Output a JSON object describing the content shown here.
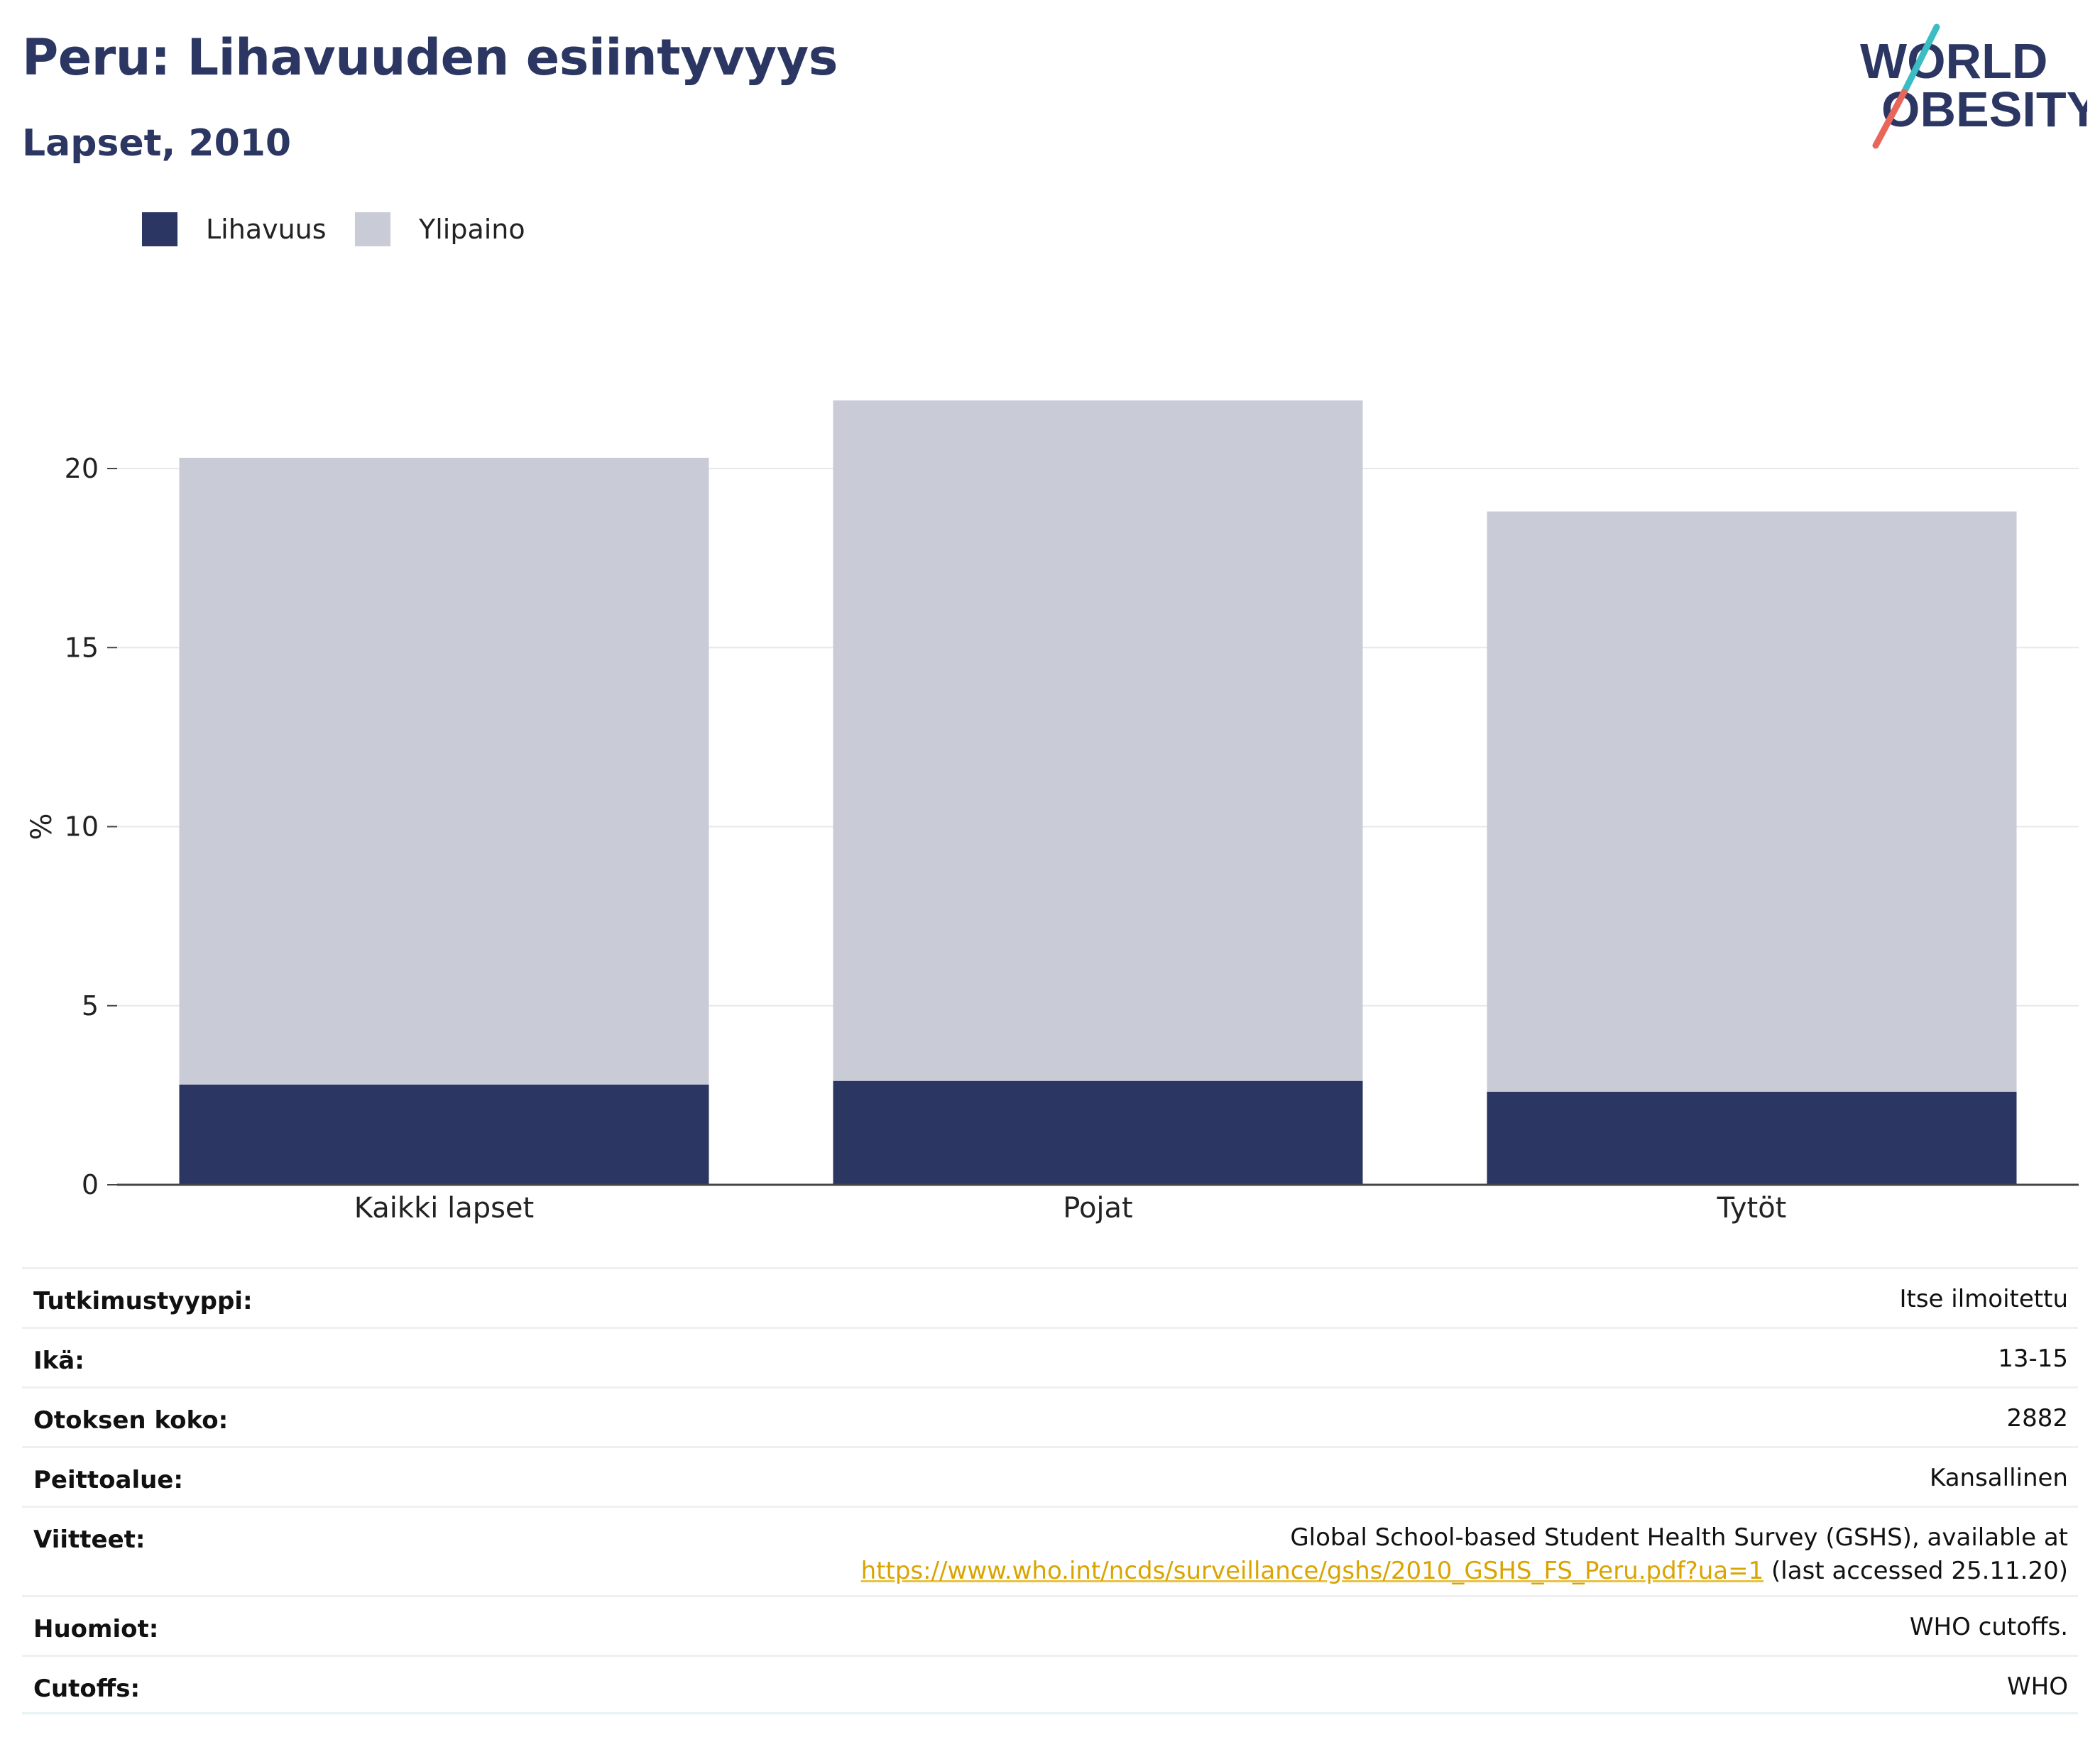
{
  "title": "Peru: Lihavuuden esiintyvyys",
  "subtitle": "Lapset, 2010",
  "logo": {
    "line1": "WORLD",
    "line2": "OBESITY"
  },
  "colors": {
    "obesity": "#2b3663",
    "overweight": "#c9cbd7",
    "title": "#2b3663",
    "link": "#d9a400",
    "logo_teal": "#3cbcc3",
    "logo_coral": "#e8675a"
  },
  "legend": [
    {
      "label": "Lihavuus",
      "color": "#2b3663"
    },
    {
      "label": "Ylipaino",
      "color": "#c9cbd7"
    }
  ],
  "chart_data": {
    "type": "bar",
    "stacked": true,
    "categories": [
      "Kaikki lapset",
      "Pojat",
      "Tytöt"
    ],
    "series": [
      {
        "name": "Lihavuus",
        "values": [
          2.8,
          2.9,
          2.6
        ],
        "color": "#2b3663"
      },
      {
        "name": "Ylipaino",
        "values": [
          17.5,
          19.0,
          16.2
        ],
        "color": "#c9cbd7"
      }
    ],
    "totals": [
      20.3,
      21.9,
      18.8
    ],
    "ylabel": "%",
    "yticks": [
      0,
      5,
      10,
      15,
      20
    ],
    "ylim": [
      0,
      22.5
    ],
    "grid": true,
    "legend_position": "top-left"
  },
  "meta": [
    {
      "key": "Tutkimustyyppi:",
      "value": "Itse ilmoitettu"
    },
    {
      "key": "Ikä:",
      "value": "13-15"
    },
    {
      "key": "Otoksen koko:",
      "value": "2882"
    },
    {
      "key": "Peittoalue:",
      "value": "Kansallinen"
    },
    {
      "key": "Viitteet:",
      "value": "Global School-based Student Health Survey (GSHS), available at",
      "link": "https://www.who.int/ncds/surveillance/gshs/2010_GSHS_FS_Peru.pdf?ua=1",
      "suffix": " (last accessed 25.11.20)"
    },
    {
      "key": "Huomiot:",
      "value": "WHO cutoffs."
    },
    {
      "key": "Cutoffs:",
      "value": "WHO"
    }
  ]
}
